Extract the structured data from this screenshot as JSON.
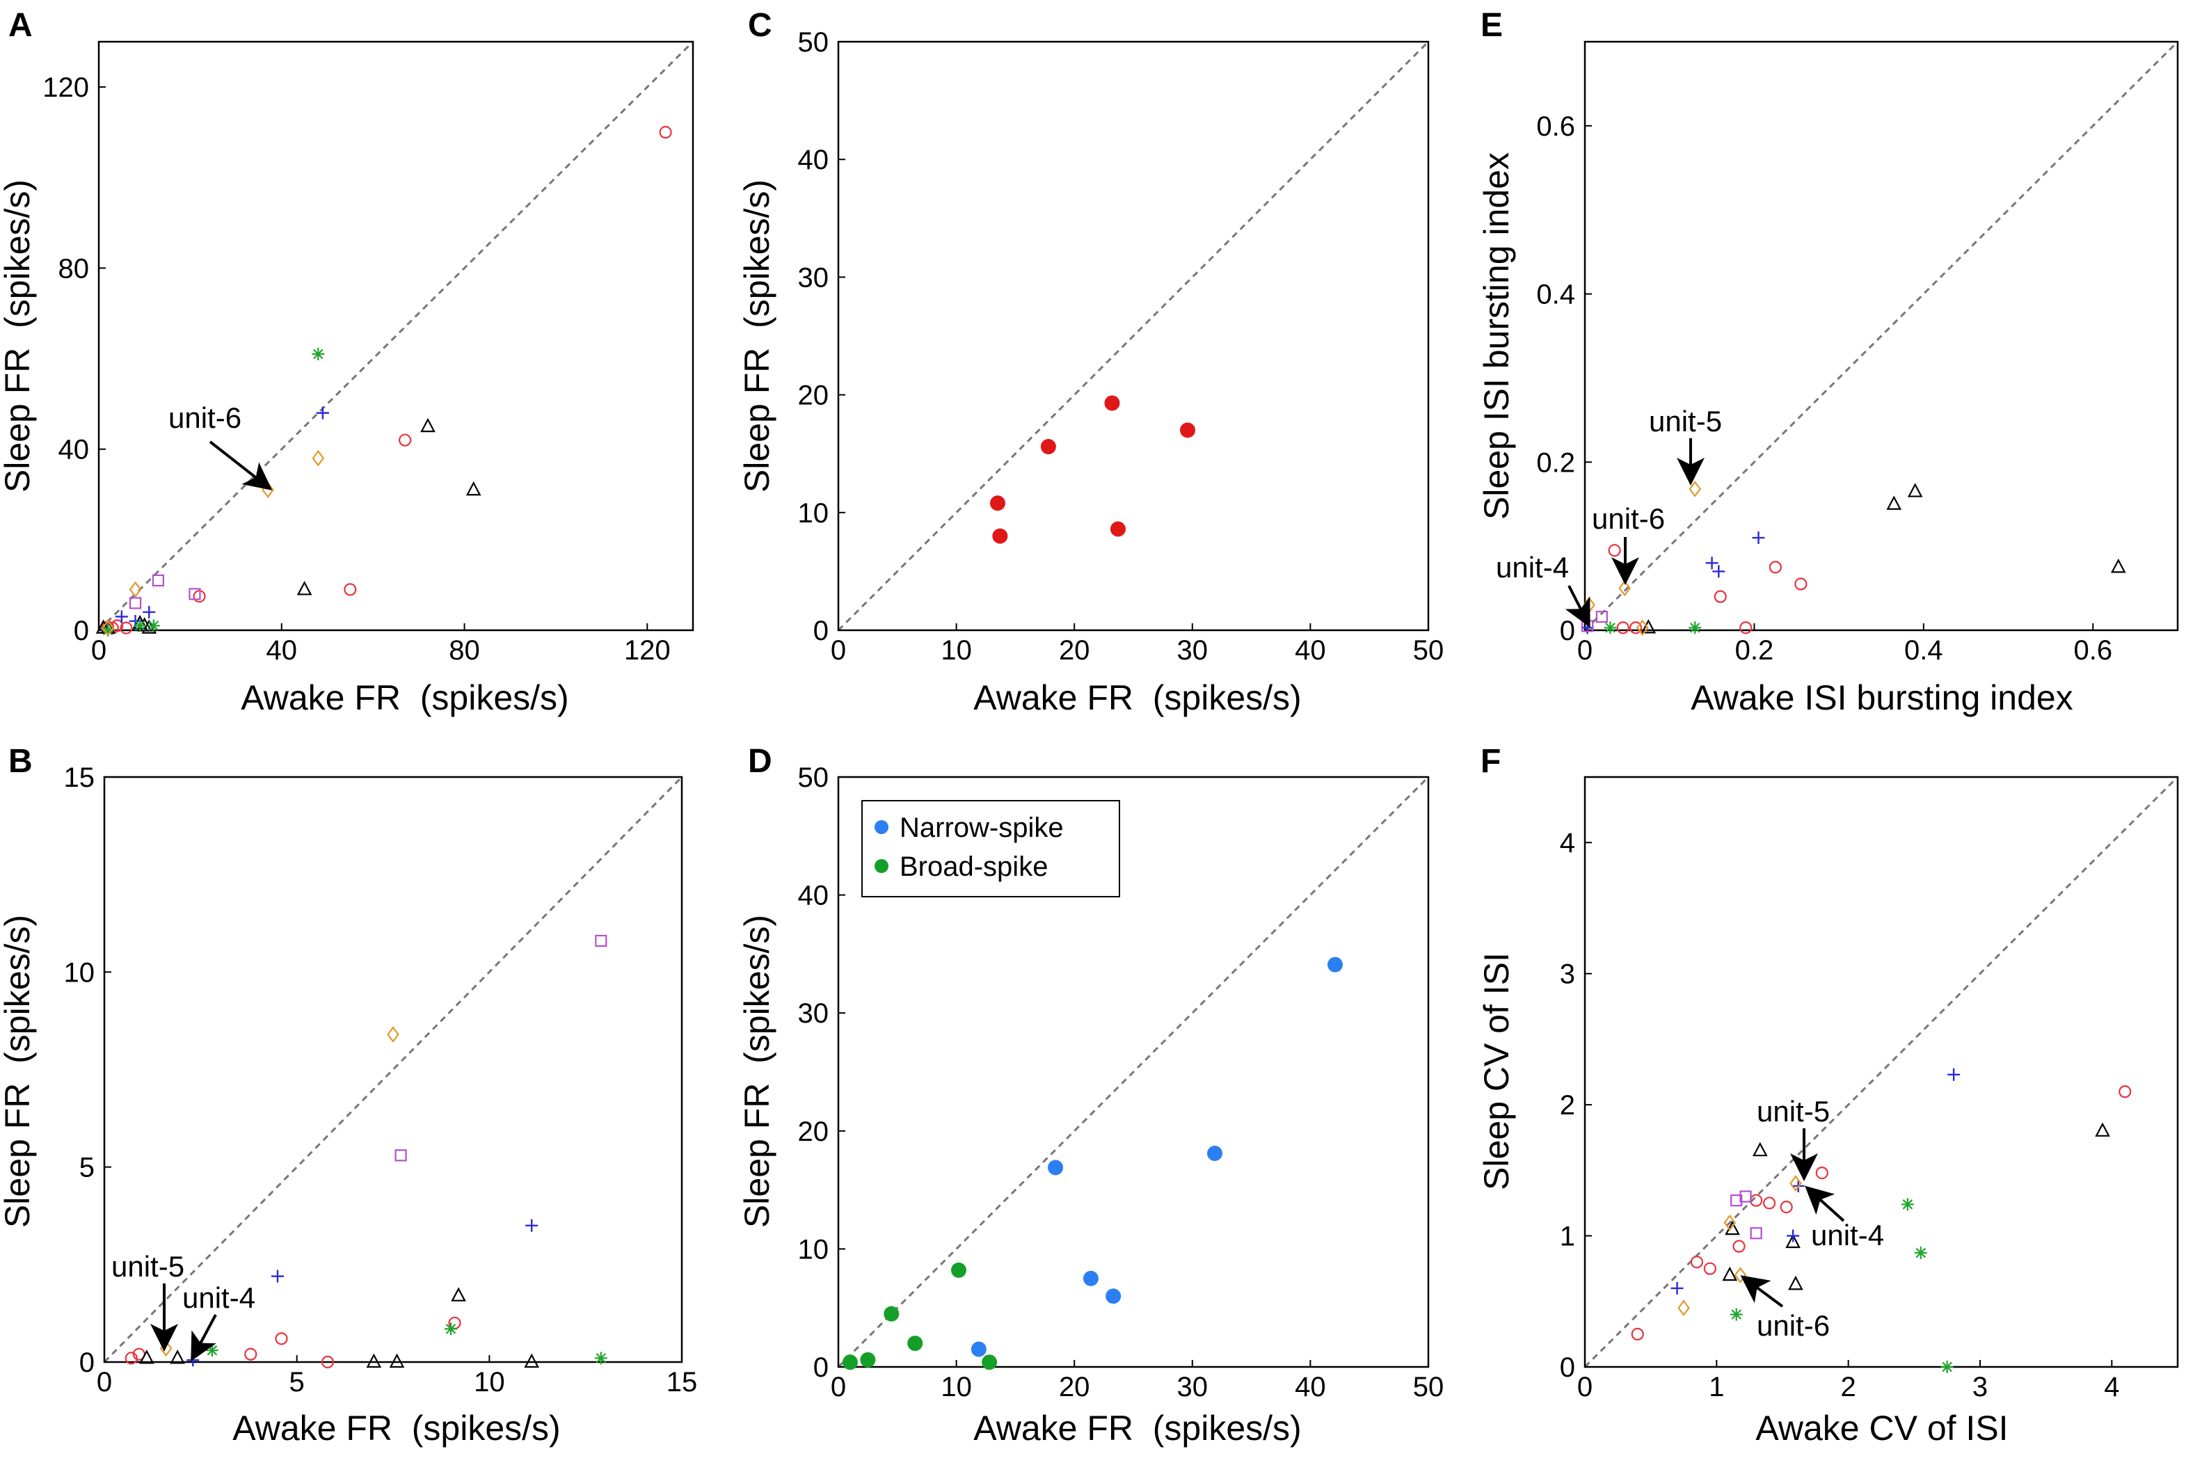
{
  "colors": {
    "red": "#e8343f",
    "blue": "#2a2ad8",
    "green": "#1fa52c",
    "orange": "#e09a2a",
    "purple": "#b44fd0",
    "black": "#000000",
    "filled_red": "#e01818",
    "narrow_blue": "#2b7ff0",
    "broad_green": "#14a028",
    "diagonal": "#777777"
  },
  "chart_data": [
    {
      "panel": "A",
      "type": "scatter",
      "xlabel": "Awake FR  (spikes/s)",
      "ylabel": "Sleep FR  (spikes/s)",
      "xlim": [
        0,
        130
      ],
      "ylim": [
        0,
        130
      ],
      "xticks": [
        0,
        40,
        80,
        120
      ],
      "yticks": [
        0,
        40,
        80,
        120
      ],
      "diagonal": true,
      "series": [
        {
          "name": "red-circle",
          "marker": "circle",
          "color": "red",
          "points": [
            [
              124,
              110
            ],
            [
              67,
              42
            ],
            [
              55,
              9
            ],
            [
              22,
              7.5
            ],
            [
              2,
              0.7
            ],
            [
              3,
              0.5
            ],
            [
              4,
              1
            ],
            [
              6,
              0.5
            ]
          ]
        },
        {
          "name": "black-triangle",
          "marker": "triangle",
          "color": "black",
          "points": [
            [
              72,
              45
            ],
            [
              82,
              31
            ],
            [
              45,
              9
            ],
            [
              1,
              0.5
            ],
            [
              2,
              0.5
            ],
            [
              9,
              1.5
            ],
            [
              10,
              1
            ],
            [
              11,
              0.5
            ]
          ]
        },
        {
          "name": "blue-plus",
          "marker": "plus",
          "color": "blue",
          "points": [
            [
              49,
              48
            ],
            [
              11,
              4
            ],
            [
              5,
              3
            ],
            [
              8,
              2
            ],
            [
              2,
              0
            ]
          ]
        },
        {
          "name": "green-star",
          "marker": "star",
          "color": "green",
          "points": [
            [
              48,
              61
            ],
            [
              9,
              1
            ],
            [
              12,
              1
            ],
            [
              2,
              0
            ]
          ]
        },
        {
          "name": "orange-diamond",
          "marker": "diamond",
          "color": "orange",
          "points": [
            [
              37,
              31
            ],
            [
              48,
              38
            ],
            [
              8,
              9
            ],
            [
              2,
              0.5
            ]
          ]
        },
        {
          "name": "purple-square",
          "marker": "square",
          "color": "purple",
          "points": [
            [
              13,
              11
            ],
            [
              21,
              8
            ],
            [
              8,
              6
            ]
          ]
        }
      ],
      "annotations": [
        {
          "text": "unit-6",
          "target": [
            37,
            31
          ]
        }
      ]
    },
    {
      "panel": "B",
      "type": "scatter",
      "xlabel": "Awake FR  (spikes/s)",
      "ylabel": "Sleep FR  (spikes/s)",
      "xlim": [
        0,
        15
      ],
      "ylim": [
        0,
        15
      ],
      "xticks": [
        0,
        5,
        10,
        15
      ],
      "yticks": [
        0,
        5,
        10,
        15
      ],
      "diagonal": true,
      "series": [
        {
          "name": "red-circle",
          "marker": "circle",
          "color": "red",
          "points": [
            [
              0.7,
              0.1
            ],
            [
              0.9,
              0.2
            ],
            [
              3.8,
              0.2
            ],
            [
              4.6,
              0.6
            ],
            [
              5.8,
              0
            ],
            [
              9.1,
              1
            ]
          ]
        },
        {
          "name": "black-triangle",
          "marker": "triangle",
          "color": "black",
          "points": [
            [
              1.1,
              0.1
            ],
            [
              1.9,
              0.1
            ],
            [
              7.0,
              0
            ],
            [
              7.6,
              0
            ],
            [
              9.2,
              1.7
            ],
            [
              11.1,
              0
            ]
          ]
        },
        {
          "name": "blue-plus",
          "marker": "plus",
          "color": "blue",
          "points": [
            [
              2.3,
              0.05
            ],
            [
              4.5,
              2.2
            ],
            [
              11.1,
              3.5
            ]
          ]
        },
        {
          "name": "green-star",
          "marker": "star",
          "color": "green",
          "points": [
            [
              2.8,
              0.3
            ],
            [
              9.0,
              0.85
            ],
            [
              12.9,
              0.1
            ]
          ]
        },
        {
          "name": "orange-diamond",
          "marker": "diamond",
          "color": "orange",
          "points": [
            [
              1.6,
              0.35
            ],
            [
              7.5,
              8.4
            ]
          ]
        },
        {
          "name": "purple-square",
          "marker": "square",
          "color": "purple",
          "points": [
            [
              7.7,
              5.3
            ],
            [
              12.9,
              10.8
            ]
          ]
        }
      ],
      "annotations": [
        {
          "text": "unit-5",
          "target": [
            1.6,
            0.35
          ]
        },
        {
          "text": "unit-4",
          "target": [
            2.3,
            0.05
          ]
        }
      ]
    },
    {
      "panel": "C",
      "type": "scatter",
      "xlabel": "Awake FR  (spikes/s)",
      "ylabel": "Sleep FR  (spikes/s)",
      "xlim": [
        0,
        50
      ],
      "ylim": [
        0,
        50
      ],
      "xticks": [
        0,
        10,
        20,
        30,
        40,
        50
      ],
      "yticks": [
        0,
        10,
        20,
        30,
        40,
        50
      ],
      "diagonal": true,
      "series": [
        {
          "name": "filled-red",
          "marker": "dot",
          "color": "filled_red",
          "points": [
            [
              13.5,
              10.8
            ],
            [
              13.7,
              8
            ],
            [
              17.8,
              15.6
            ],
            [
              23.2,
              19.3
            ],
            [
              29.6,
              17
            ],
            [
              23.7,
              8.6
            ]
          ]
        }
      ]
    },
    {
      "panel": "D",
      "type": "scatter",
      "xlabel": "Awake FR  (spikes/s)",
      "ylabel": "Sleep FR  (spikes/s)",
      "xlim": [
        0,
        50
      ],
      "ylim": [
        0,
        50
      ],
      "xticks": [
        0,
        10,
        20,
        30,
        40,
        50
      ],
      "yticks": [
        0,
        10,
        20,
        30,
        40,
        50
      ],
      "diagonal": true,
      "legend": {
        "placement": "top-left",
        "entries": [
          {
            "label": "Narrow-spike",
            "color": "narrow_blue"
          },
          {
            "label": "Broad-spike",
            "color": "broad_green"
          }
        ]
      },
      "series": [
        {
          "name": "Narrow-spike",
          "marker": "dot",
          "color": "narrow_blue",
          "points": [
            [
              42.1,
              34.1
            ],
            [
              31.9,
              18.1
            ],
            [
              18.4,
              16.9
            ],
            [
              21.4,
              7.5
            ],
            [
              23.3,
              6
            ],
            [
              11.9,
              1.5
            ]
          ]
        },
        {
          "name": "Broad-spike",
          "marker": "dot",
          "color": "broad_green",
          "points": [
            [
              10.2,
              8.2
            ],
            [
              4.5,
              4.5
            ],
            [
              6.5,
              2
            ],
            [
              1,
              0.4
            ],
            [
              2.5,
              0.6
            ],
            [
              12.8,
              0.4
            ]
          ]
        }
      ]
    },
    {
      "panel": "E",
      "type": "scatter",
      "xlabel": "Awake ISI bursting index",
      "ylabel": "Sleep ISI bursting index",
      "xlim": [
        0,
        0.7
      ],
      "ylim": [
        0,
        0.7
      ],
      "xticks": [
        0,
        0.2,
        0.4,
        0.6
      ],
      "yticks": [
        0,
        0.2,
        0.4,
        0.6
      ],
      "xtick_labels": [
        "0",
        "0.2",
        "0.4",
        "0.6"
      ],
      "ytick_labels": [
        "0",
        "0.2",
        "0.4",
        "0.6"
      ],
      "diagonal": true,
      "series": [
        {
          "name": "red-circle",
          "marker": "circle",
          "color": "red",
          "points": [
            [
              0.035,
              0.095
            ],
            [
              0.225,
              0.075
            ],
            [
              0.255,
              0.055
            ],
            [
              0.16,
              0.04
            ],
            [
              0.045,
              0.003
            ],
            [
              0.06,
              0.003
            ],
            [
              0.19,
              0.003
            ]
          ]
        },
        {
          "name": "black-triangle",
          "marker": "triangle",
          "color": "black",
          "points": [
            [
              0.365,
              0.15
            ],
            [
              0.39,
              0.165
            ],
            [
              0.63,
              0.075
            ],
            [
              0.075,
              0.003
            ]
          ]
        },
        {
          "name": "blue-plus",
          "marker": "plus",
          "color": "blue",
          "points": [
            [
              0.205,
              0.11
            ],
            [
              0.15,
              0.08
            ],
            [
              0.158,
              0.07
            ],
            [
              0.003,
              0.003
            ]
          ]
        },
        {
          "name": "green-star",
          "marker": "star",
          "color": "green",
          "points": [
            [
              0.13,
              0.003
            ],
            [
              0.03,
              0.003
            ]
          ]
        },
        {
          "name": "orange-diamond",
          "marker": "diamond",
          "color": "orange",
          "points": [
            [
              0.13,
              0.168
            ],
            [
              0.047,
              0.05
            ],
            [
              0.005,
              0.03
            ],
            [
              0.068,
              0.003
            ]
          ]
        },
        {
          "name": "purple-square",
          "marker": "square",
          "color": "purple",
          "points": [
            [
              0.02,
              0.016
            ],
            [
              0.003,
              0.005
            ]
          ]
        }
      ],
      "annotations": [
        {
          "text": "unit-5",
          "target": [
            0.13,
            0.168
          ]
        },
        {
          "text": "unit-6",
          "target": [
            0.047,
            0.05
          ]
        },
        {
          "text": "unit-4",
          "target": [
            0.003,
            0.003
          ]
        }
      ]
    },
    {
      "panel": "F",
      "type": "scatter",
      "xlabel": "Awake CV of ISI",
      "ylabel": "Sleep CV of ISI",
      "xlim": [
        0,
        4.5
      ],
      "ylim": [
        0,
        4.5
      ],
      "xticks": [
        0,
        1,
        2,
        3,
        4
      ],
      "yticks": [
        0,
        1,
        2,
        3,
        4
      ],
      "diagonal": true,
      "series": [
        {
          "name": "red-circle",
          "marker": "circle",
          "color": "red",
          "points": [
            [
              4.1,
              2.1
            ],
            [
              0.4,
              0.25
            ],
            [
              0.85,
              0.8
            ],
            [
              0.95,
              0.75
            ],
            [
              1.3,
              1.27
            ],
            [
              1.4,
              1.25
            ],
            [
              1.17,
              0.92
            ],
            [
              1.53,
              1.22
            ],
            [
              1.8,
              1.48
            ]
          ]
        },
        {
          "name": "black-triangle",
          "marker": "triangle",
          "color": "black",
          "points": [
            [
              3.93,
              1.8
            ],
            [
              1.33,
              1.65
            ],
            [
              1.12,
              1.05
            ],
            [
              1.1,
              0.7
            ],
            [
              1.58,
              0.95
            ],
            [
              1.6,
              0.63
            ]
          ]
        },
        {
          "name": "blue-plus",
          "marker": "plus",
          "color": "blue",
          "points": [
            [
              2.8,
              2.23
            ],
            [
              0.7,
              0.6
            ],
            [
              1.62,
              1.38
            ],
            [
              1.58,
              1
            ]
          ]
        },
        {
          "name": "green-star",
          "marker": "star",
          "color": "green",
          "points": [
            [
              2.45,
              1.24
            ],
            [
              2.55,
              0.87
            ],
            [
              1.15,
              0.4
            ],
            [
              2.75,
              0
            ]
          ]
        },
        {
          "name": "orange-diamond",
          "marker": "diamond",
          "color": "orange",
          "points": [
            [
              0.75,
              0.45
            ],
            [
              1.1,
              1.1
            ],
            [
              1.6,
              1.4
            ],
            [
              1.18,
              0.7
            ]
          ]
        },
        {
          "name": "purple-square",
          "marker": "square",
          "color": "purple",
          "points": [
            [
              1.15,
              1.27
            ],
            [
              1.22,
              1.3
            ],
            [
              1.3,
              1.02
            ]
          ]
        }
      ],
      "annotations": [
        {
          "text": "unit-5",
          "target": [
            1.62,
            1.45
          ]
        },
        {
          "text": "unit-4",
          "target": [
            1.65,
            1.35
          ]
        },
        {
          "text": "unit-6",
          "target": [
            1.18,
            0.7
          ]
        }
      ]
    }
  ]
}
